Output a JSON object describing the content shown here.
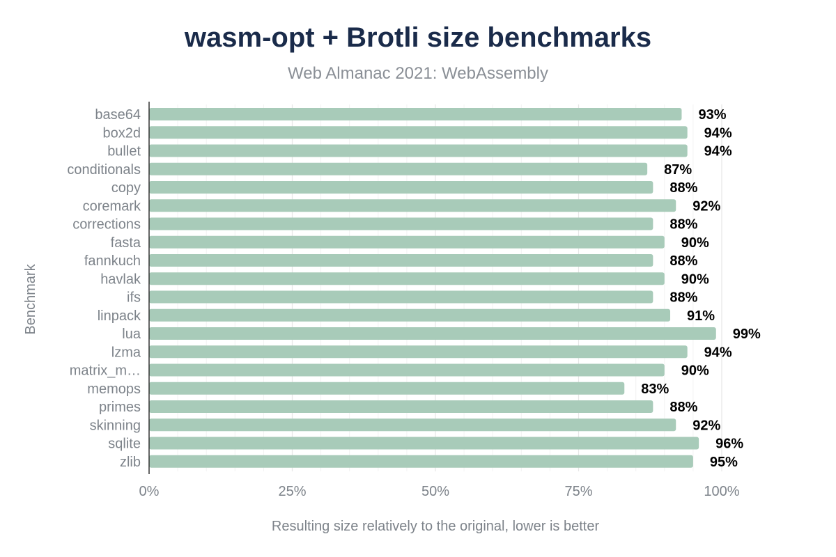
{
  "chart_data": {
    "type": "bar",
    "orientation": "horizontal",
    "title": "wasm-opt + Brotli size benchmarks",
    "subtitle": "Web Almanac 2021: WebAssembly",
    "xlabel": "Resulting size relatively to the original, lower is better",
    "ylabel": "Benchmark",
    "xlim": [
      0,
      100
    ],
    "x_ticks": [
      "0%",
      "25%",
      "50%",
      "75%",
      "100%"
    ],
    "grid": true,
    "bar_color": "#a8cbb9",
    "categories": [
      "base64",
      "box2d",
      "bullet",
      "conditionals",
      "copy",
      "coremark",
      "corrections",
      "fasta",
      "fannkuch",
      "havlak",
      "ifs",
      "linpack",
      "lua",
      "lzma",
      "matrix_m…",
      "memops",
      "primes",
      "skinning",
      "sqlite",
      "zlib"
    ],
    "values": [
      93,
      94,
      94,
      87,
      88,
      92,
      88,
      90,
      88,
      90,
      88,
      91,
      99,
      94,
      90,
      83,
      88,
      92,
      96,
      95
    ],
    "data_labels": [
      "93%",
      "94%",
      "94%",
      "87%",
      "88%",
      "92%",
      "88%",
      "90%",
      "88%",
      "90%",
      "88%",
      "91%",
      "99%",
      "94%",
      "90%",
      "83%",
      "88%",
      "92%",
      "96%",
      "95%"
    ]
  }
}
